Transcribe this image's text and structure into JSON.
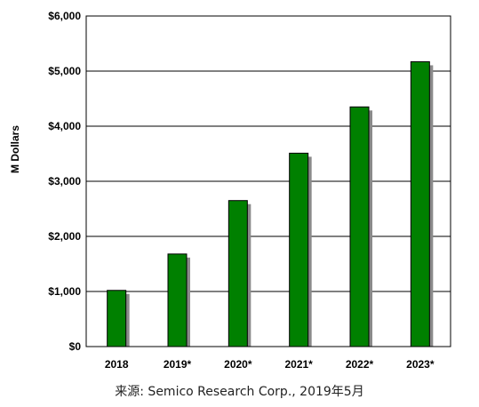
{
  "chart_data": {
    "type": "bar",
    "categories": [
      "2018",
      "2019*",
      "2020*",
      "2021*",
      "2022*",
      "2023*"
    ],
    "values": [
      1020,
      1680,
      2650,
      3510,
      4350,
      5170
    ],
    "ylabel": "M Dollars",
    "ylim": [
      0,
      6000
    ],
    "yticks": [
      0,
      1000,
      2000,
      3000,
      4000,
      5000,
      6000
    ],
    "ytick_labels": [
      "$0",
      "$1,000",
      "$2,000",
      "$3,000",
      "$4,000",
      "$5,000",
      "$6,000"
    ],
    "grid": true,
    "legend": "none",
    "colors": {
      "bar": "#008000",
      "bar_edge": "#000000",
      "bar_shadow": "#8a8a8a",
      "grid": "#000000"
    }
  },
  "source": "来源: Semico Research Corp., 2019年5月"
}
